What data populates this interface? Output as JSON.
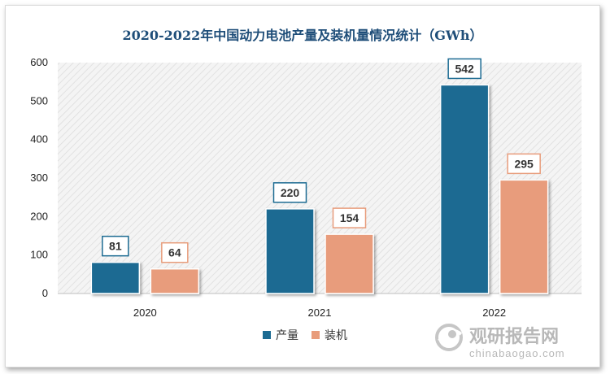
{
  "chart_data": {
    "type": "bar",
    "title": "2020-2022年中国动力电池产量及装机量情况统计（GWh）",
    "categories": [
      "2020",
      "2021",
      "2022"
    ],
    "series": [
      {
        "name": "产量",
        "values": [
          81,
          220,
          542
        ],
        "color": "#1c6b92"
      },
      {
        "name": "装机",
        "values": [
          64,
          154,
          295
        ],
        "color": "#e89c7b"
      }
    ],
    "ylim": [
      0,
      600
    ],
    "yticks": [
      0,
      100,
      200,
      300,
      400,
      500,
      600
    ],
    "grid": false,
    "legend": "bottom"
  },
  "watermark": {
    "name": "观研报告网",
    "url": "chinabaogao.com"
  }
}
